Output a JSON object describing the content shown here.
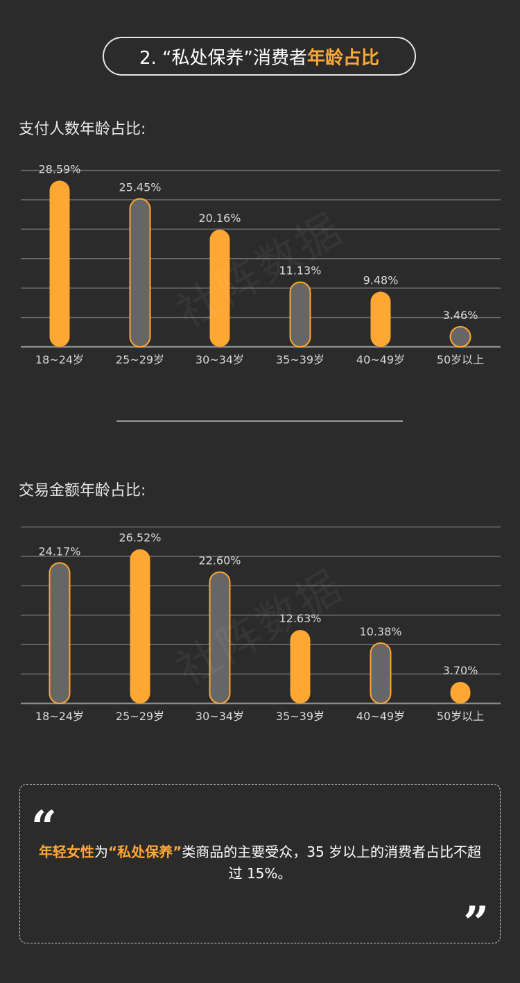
{
  "header": {
    "title_prefix": "2. “私处保养”消费者",
    "title_highlight": "年龄占比"
  },
  "watermark": "社阵数据",
  "chart_data": [
    {
      "type": "bar",
      "title": "支付人数年龄占比:",
      "categories": [
        "18~24岁",
        "25~29岁",
        "30~34岁",
        "35~39岁",
        "40~49岁",
        "50岁以上"
      ],
      "values": [
        28.59,
        25.45,
        20.16,
        11.13,
        9.48,
        3.46
      ],
      "value_labels": [
        "28.59%",
        "25.45%",
        "20.16%",
        "11.13%",
        "9.48%",
        "3.46%"
      ],
      "bar_colors": [
        "#ffa733",
        "#666666",
        "#ffa733",
        "#666666",
        "#ffa733",
        "#666666"
      ],
      "ylim": [
        0,
        30
      ],
      "grid": true,
      "ylabel": "",
      "xlabel": ""
    },
    {
      "type": "bar",
      "title": "交易金额年龄占比:",
      "categories": [
        "18~24岁",
        "25~29岁",
        "30~34岁",
        "35~39岁",
        "40~49岁",
        "50岁以上"
      ],
      "values": [
        24.17,
        26.52,
        22.6,
        12.63,
        10.38,
        3.7
      ],
      "value_labels": [
        "24.17%",
        "26.52%",
        "22.60%",
        "12.63%",
        "10.38%",
        "3.70%"
      ],
      "bar_colors": [
        "#666666",
        "#ffa733",
        "#666666",
        "#ffa733",
        "#666666",
        "#ffa733"
      ],
      "ylim": [
        0,
        30
      ],
      "grid": true,
      "ylabel": "",
      "xlabel": ""
    }
  ],
  "summary": {
    "highlight1": "年轻女性",
    "text1": "为",
    "highlight2": "“私处保养”",
    "text2": "类商品的主要受众，35 岁以上的消费者占比不超过 15%。"
  },
  "colors": {
    "accent": "#ffa733",
    "gray_bar": "#666666",
    "background": "#2b2b2b"
  }
}
